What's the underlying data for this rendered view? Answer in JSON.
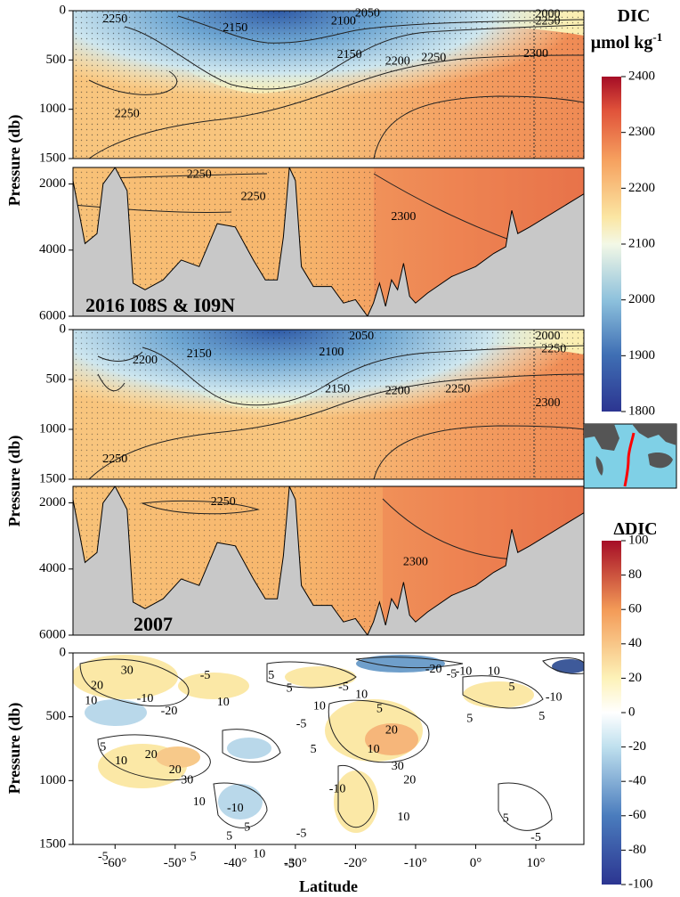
{
  "chart_data": [
    {
      "type": "heatmap",
      "name_in_image": "2016 I08S & I09N",
      "annotation": "2016 I08S & I09N",
      "variable": "DIC",
      "xlim": [
        -67,
        18
      ],
      "upper_ylim": [
        0,
        1500
      ],
      "upper_yticks": [
        0,
        500,
        1000,
        1500
      ],
      "lower_ylim": [
        1500,
        6000
      ],
      "lower_yticks": [
        2000,
        4000,
        6000
      ],
      "ylabel": "Pressure (db)",
      "contour_labels": [
        {
          "v": "2250",
          "lat": -60,
          "p": 90
        },
        {
          "v": "2150",
          "lat": -40,
          "p": 180
        },
        {
          "v": "2100",
          "lat": -22,
          "p": 110
        },
        {
          "v": "2050",
          "lat": -18,
          "p": 30
        },
        {
          "v": "2150",
          "lat": -21,
          "p": 450
        },
        {
          "v": "2200",
          "lat": -13,
          "p": 520
        },
        {
          "v": "2250",
          "lat": -7,
          "p": 480
        },
        {
          "v": "2300",
          "lat": 10,
          "p": 440
        },
        {
          "v": "2250",
          "lat": -58,
          "p": 1050
        },
        {
          "v": "2250",
          "lat": 12,
          "p": 110
        },
        {
          "v": "2000",
          "lat": 12,
          "p": 40
        },
        {
          "v": "2250",
          "lat": -46,
          "p": 1720
        },
        {
          "v": "2250",
          "lat": -37,
          "p": 2400
        },
        {
          "v": "2300",
          "lat": -12,
          "p": 3000
        }
      ],
      "bathymetry": [
        [
          -67,
          1900
        ],
        [
          -65,
          3800
        ],
        [
          -63,
          3500
        ],
        [
          -62,
          2000
        ],
        [
          -60,
          1500
        ],
        [
          -58,
          2200
        ],
        [
          -57,
          5000
        ],
        [
          -55,
          5200
        ],
        [
          -52,
          4900
        ],
        [
          -49,
          4300
        ],
        [
          -46,
          4500
        ],
        [
          -43,
          3200
        ],
        [
          -40,
          3300
        ],
        [
          -37,
          4300
        ],
        [
          -35,
          4900
        ],
        [
          -33,
          4900
        ],
        [
          -32,
          3600
        ],
        [
          -31,
          1500
        ],
        [
          -30,
          1900
        ],
        [
          -29,
          4500
        ],
        [
          -27,
          5100
        ],
        [
          -24,
          5100
        ],
        [
          -22,
          5600
        ],
        [
          -20,
          5500
        ],
        [
          -18,
          6000
        ],
        [
          -17,
          5600
        ],
        [
          -16,
          5000
        ],
        [
          -15,
          5700
        ],
        [
          -14,
          4900
        ],
        [
          -13,
          5200
        ],
        [
          -12,
          4400
        ],
        [
          -11,
          5400
        ],
        [
          -10,
          5600
        ],
        [
          -8,
          5300
        ],
        [
          -4,
          4800
        ],
        [
          0,
          4500
        ],
        [
          3,
          4100
        ],
        [
          5,
          3900
        ],
        [
          6,
          2800
        ],
        [
          7,
          3500
        ],
        [
          9,
          3300
        ],
        [
          18,
          2300
        ]
      ]
    },
    {
      "type": "heatmap",
      "name_in_image": "2007",
      "annotation": "2007",
      "variable": "DIC",
      "xlim": [
        -67,
        18
      ],
      "upper_ylim": [
        0,
        1500
      ],
      "lower_ylim": [
        1500,
        6000
      ],
      "ylabel": "Pressure (db)",
      "contour_labels": [
        {
          "v": "2200",
          "lat": -55,
          "p": 310
        },
        {
          "v": "2150",
          "lat": -46,
          "p": 250
        },
        {
          "v": "2100",
          "lat": -24,
          "p": 230
        },
        {
          "v": "2050",
          "lat": -19,
          "p": 70
        },
        {
          "v": "2150",
          "lat": -23,
          "p": 600
        },
        {
          "v": "2200",
          "lat": -13,
          "p": 620
        },
        {
          "v": "2250",
          "lat": -3,
          "p": 600
        },
        {
          "v": "2300",
          "lat": 12,
          "p": 740
        },
        {
          "v": "2250",
          "lat": -60,
          "p": 1300
        },
        {
          "v": "2250",
          "lat": 13,
          "p": 200
        },
        {
          "v": "2000",
          "lat": 12,
          "p": 70
        },
        {
          "v": "2250",
          "lat": -42,
          "p": 1980
        },
        {
          "v": "2300",
          "lat": -10,
          "p": 3800
        }
      ],
      "bathymetry": [
        [
          -67,
          1900
        ],
        [
          -65,
          3800
        ],
        [
          -63,
          3500
        ],
        [
          -62,
          2000
        ],
        [
          -60,
          1500
        ],
        [
          -58,
          2200
        ],
        [
          -57,
          5000
        ],
        [
          -55,
          5200
        ],
        [
          -52,
          4900
        ],
        [
          -49,
          4300
        ],
        [
          -46,
          4500
        ],
        [
          -43,
          3200
        ],
        [
          -40,
          3300
        ],
        [
          -37,
          4300
        ],
        [
          -35,
          4900
        ],
        [
          -33,
          4900
        ],
        [
          -32,
          3600
        ],
        [
          -31,
          1500
        ],
        [
          -30,
          1900
        ],
        [
          -29,
          4500
        ],
        [
          -27,
          5100
        ],
        [
          -24,
          5100
        ],
        [
          -22,
          5600
        ],
        [
          -20,
          5500
        ],
        [
          -18,
          6000
        ],
        [
          -17,
          5600
        ],
        [
          -16,
          5000
        ],
        [
          -15,
          5700
        ],
        [
          -14,
          4900
        ],
        [
          -13,
          5200
        ],
        [
          -12,
          4400
        ],
        [
          -11,
          5400
        ],
        [
          -10,
          5600
        ],
        [
          -8,
          5300
        ],
        [
          -4,
          4800
        ],
        [
          0,
          4500
        ],
        [
          3,
          4100
        ],
        [
          5,
          3900
        ],
        [
          6,
          2800
        ],
        [
          7,
          3500
        ],
        [
          9,
          3300
        ],
        [
          18,
          2300
        ]
      ]
    },
    {
      "type": "heatmap",
      "variable": "ΔDIC",
      "xlim": [
        -67,
        18
      ],
      "ylim": [
        0,
        1500
      ],
      "yticks": [
        0,
        500,
        1000,
        1500
      ],
      "xticks": [
        -60,
        -50,
        -40,
        -30,
        -20,
        -10,
        0,
        10
      ],
      "xtick_labels": [
        "-60°",
        "-50°",
        "-40°",
        "-30°",
        "-20°",
        "-10°",
        "0°",
        "10°"
      ],
      "xlabel": "Latitude",
      "ylabel": "Pressure (db)",
      "contour_labels": [
        {
          "v": "30",
          "lat": -58,
          "p": 140
        },
        {
          "v": "20",
          "lat": -63,
          "p": 260
        },
        {
          "v": "10",
          "lat": -64,
          "p": 380
        },
        {
          "v": "-10",
          "lat": -55,
          "p": 360
        },
        {
          "v": "-20",
          "lat": -51,
          "p": 460
        },
        {
          "v": "-5",
          "lat": -45,
          "p": 180
        },
        {
          "v": "10",
          "lat": -42,
          "p": 390
        },
        {
          "v": "5",
          "lat": -34,
          "p": 180
        },
        {
          "v": "5",
          "lat": -31,
          "p": 280
        },
        {
          "v": "10",
          "lat": -26,
          "p": 420
        },
        {
          "v": "-5",
          "lat": -22,
          "p": 270
        },
        {
          "v": "-5",
          "lat": -29,
          "p": 560
        },
        {
          "v": "10",
          "lat": -19,
          "p": 330
        },
        {
          "v": "5",
          "lat": -16,
          "p": 440
        },
        {
          "v": "20",
          "lat": -14,
          "p": 610
        },
        {
          "v": "10",
          "lat": -17,
          "p": 760
        },
        {
          "v": "30",
          "lat": -13,
          "p": 890
        },
        {
          "v": "20",
          "lat": -11,
          "p": 1000
        },
        {
          "v": "10",
          "lat": -12,
          "p": 1290
        },
        {
          "v": "-5",
          "lat": -4,
          "p": 170
        },
        {
          "v": "-10",
          "lat": -2,
          "p": 150
        },
        {
          "v": "-20",
          "lat": -7,
          "p": 130
        },
        {
          "v": "10",
          "lat": 3,
          "p": 150
        },
        {
          "v": "5",
          "lat": 6,
          "p": 270
        },
        {
          "v": "5",
          "lat": 11,
          "p": 500
        },
        {
          "v": "-10",
          "lat": 13,
          "p": 350
        },
        {
          "v": "5",
          "lat": -1,
          "p": 520
        },
        {
          "v": "5",
          "lat": -62,
          "p": 740
        },
        {
          "v": "10",
          "lat": -59,
          "p": 850
        },
        {
          "v": "20",
          "lat": -54,
          "p": 800
        },
        {
          "v": "20",
          "lat": -50,
          "p": 920
        },
        {
          "v": "30",
          "lat": -48,
          "p": 1000
        },
        {
          "v": "10",
          "lat": -46,
          "p": 1170
        },
        {
          "v": "-10",
          "lat": -40,
          "p": 1220
        },
        {
          "v": "5",
          "lat": -38,
          "p": 1370
        },
        {
          "v": "5",
          "lat": -41,
          "p": 1440
        },
        {
          "v": "10",
          "lat": -36,
          "p": 1580
        },
        {
          "v": "-10",
          "lat": -23,
          "p": 1070
        },
        {
          "v": "-5",
          "lat": -29,
          "p": 1420
        },
        {
          "v": "5",
          "lat": -27,
          "p": 760
        },
        {
          "v": "-5",
          "lat": -62,
          "p": 1600
        },
        {
          "v": "5",
          "lat": -47,
          "p": 1600
        },
        {
          "v": "-5",
          "lat": -31,
          "p": 1660
        },
        {
          "v": "5",
          "lat": 5,
          "p": 1300
        },
        {
          "v": "-5",
          "lat": 10,
          "p": 1450
        }
      ]
    }
  ],
  "colorbars": {
    "dic": {
      "title_line1": "DIC",
      "title_line2": "μmol kg",
      "title_sup": "-1",
      "ticks": [
        "2400",
        "2300",
        "2200",
        "2100",
        "2000",
        "1900",
        "1800"
      ],
      "range": [
        1800,
        2400
      ]
    },
    "ddic": {
      "title": "ΔDIC",
      "ticks": [
        "100",
        "80",
        "60",
        "40",
        "20",
        "0",
        "-20",
        "-40",
        "-60",
        "-80",
        "-100"
      ],
      "range": [
        -100,
        100
      ]
    }
  },
  "colors": {
    "bathymetry": "#c8c8c8",
    "map_ocean": "#7fd0e6",
    "map_land": "#555555",
    "section_line": "#ff0000"
  }
}
